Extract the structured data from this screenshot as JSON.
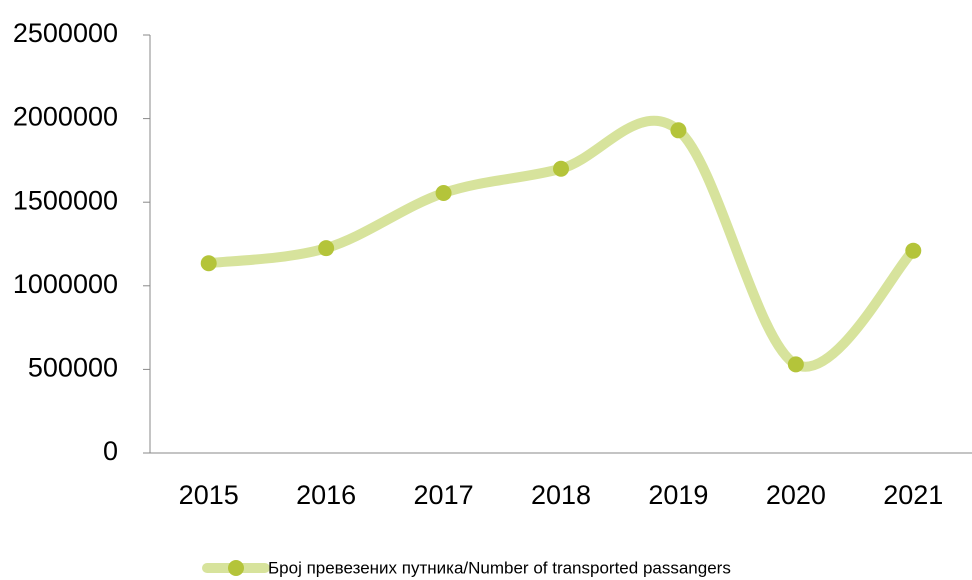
{
  "chart_data": {
    "type": "line",
    "categories": [
      "2015",
      "2016",
      "2017",
      "2018",
      "2019",
      "2020",
      "2021"
    ],
    "series": [
      {
        "name": "Број превезених путника/Number  of transported  passangers",
        "color": "#d7e39c",
        "marker_color": "#b4c43a",
        "values": [
          1135000,
          1225000,
          1555000,
          1700000,
          1930000,
          530000,
          1210000
        ]
      }
    ],
    "ylim": [
      0,
      2500000
    ],
    "yticks": [
      0,
      500000,
      1000000,
      1500000,
      2000000,
      2500000
    ],
    "smooth": true,
    "grid": false
  }
}
